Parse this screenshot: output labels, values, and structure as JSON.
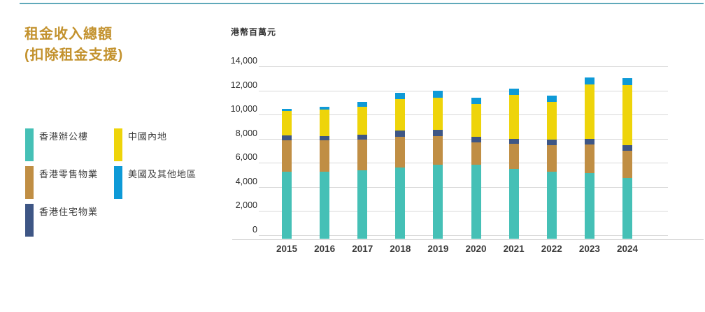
{
  "page": {
    "title_line1": "租金收入總額",
    "title_line2": "(扣除租金支援)",
    "title_color": "#c3922e",
    "top_rule_color": "#60a9ba"
  },
  "legend": {
    "items": [
      {
        "key": "office",
        "label": "香港辦公樓",
        "color": "#45c0b6"
      },
      {
        "key": "retail",
        "label": "香港零售物業",
        "color": "#c08e44"
      },
      {
        "key": "residential",
        "label": "香港住宅物業",
        "color": "#3e5685"
      },
      {
        "key": "mainland",
        "label": "中國內地",
        "color": "#eed40a"
      },
      {
        "key": "us-others",
        "label": "美國及其他地區",
        "color": "#0e9ad7"
      }
    ]
  },
  "chart_data": {
    "type": "bar",
    "stacked": true,
    "title": "租金收入總額(扣除租金支援)",
    "unit_label": "港幣百萬元",
    "xlabel": "",
    "ylabel": "港幣百萬元",
    "categories": [
      "2015",
      "2016",
      "2017",
      "2018",
      "2019",
      "2020",
      "2021",
      "2022",
      "2023",
      "2024"
    ],
    "series": [
      {
        "key": "office",
        "name": "香港辦公樓",
        "color": "#45c0b6",
        "values": [
          5560,
          5560,
          5660,
          5890,
          6120,
          6120,
          5790,
          5560,
          5410,
          5060
        ]
      },
      {
        "key": "retail",
        "name": "香港零售物業",
        "color": "#c08e44",
        "values": [
          2600,
          2590,
          2550,
          2570,
          2410,
          1890,
          2070,
          2220,
          2410,
          2220
        ]
      },
      {
        "key": "residential",
        "name": "香港住宅物業",
        "color": "#3e5685",
        "values": [
          430,
          350,
          420,
          480,
          480,
          430,
          440,
          430,
          480,
          480
        ]
      },
      {
        "key": "mainland",
        "name": "中國內地",
        "color": "#eed40a",
        "values": [
          2010,
          2220,
          2320,
          2650,
          2700,
          2700,
          3610,
          3130,
          4500,
          4940
        ]
      },
      {
        "key": "us-others",
        "name": "美國及其他地區",
        "color": "#0e9ad7",
        "values": [
          150,
          190,
          390,
          520,
          580,
          540,
          540,
          500,
          560,
          580
        ]
      }
    ],
    "totals": [
      10750,
      10910,
      11340,
      12110,
      12290,
      11680,
      12450,
      11840,
      13360,
      13280
    ],
    "ylim": [
      0,
      14000
    ],
    "yticks": [
      0,
      2000,
      4000,
      6000,
      8000,
      10000,
      12000,
      14000
    ],
    "ytick_labels": [
      "0",
      "2,000",
      "4,000",
      "6,000",
      "8,000",
      "10,000",
      "12,000",
      "14,000"
    ],
    "grid": true,
    "legend_position": "left"
  }
}
